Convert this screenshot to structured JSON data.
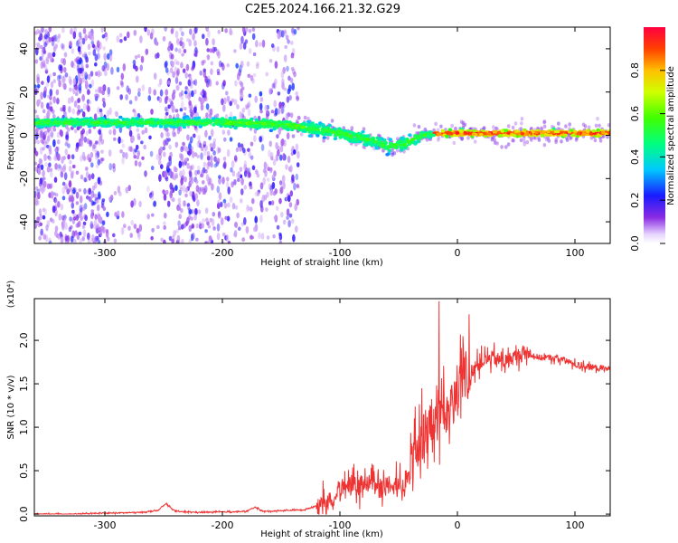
{
  "title": "C2E5.2024.166.21.32.G29",
  "chart_data": [
    {
      "type": "heatmap",
      "xlabel": "Height of straight line (km)",
      "ylabel": "Frequency (Hz)",
      "xlim": [
        -360,
        130
      ],
      "ylim": [
        -50,
        50
      ],
      "xticks": [
        -300,
        -200,
        -100,
        0,
        100
      ],
      "yticks": [
        -40,
        -20,
        0,
        20,
        40
      ],
      "colorbar": {
        "label": "Normalized spectral amplitude",
        "range": [
          0.0,
          1.0
        ],
        "ticks": [
          "0.0",
          "0.2",
          "0.4",
          "0.6",
          "0.8"
        ],
        "tick_values": [
          0.0,
          0.2,
          0.4,
          0.6,
          0.8
        ]
      },
      "ridge": {
        "x": [
          -350,
          -300,
          -250,
          -200,
          -150,
          -120,
          -100,
          -75,
          -60,
          -45,
          -30,
          -15,
          0,
          50,
          100,
          130
        ],
        "y": [
          6,
          6,
          6,
          6,
          5,
          3,
          1,
          -2,
          -5,
          -4,
          0,
          1,
          1,
          1,
          1,
          1
        ]
      }
    },
    {
      "type": "line",
      "xlabel": "Height of straight line (km)",
      "ylabel": "SNR (10 * v/v)",
      "multiplier": "(x10⁴)",
      "xlim": [
        -360,
        130
      ],
      "ylim": [
        -0.02,
        2.48
      ],
      "xticks": [
        -300,
        -200,
        -100,
        0,
        100
      ],
      "yticks": [
        0.0,
        0.5,
        1.0,
        1.5,
        2.0
      ],
      "ytick_labels": [
        "0.0",
        "0.5",
        "1.0",
        "1.5",
        "2.0"
      ],
      "series": [
        {
          "color": "#ee3333",
          "x": [
            -360,
            -330,
            -300,
            -270,
            -255,
            -248,
            -240,
            -220,
            -180,
            -172,
            -165,
            -150,
            -130,
            -115,
            -105,
            -100,
            -95,
            -85,
            -75,
            -65,
            -55,
            -45,
            -38,
            -32,
            -27,
            -22,
            -18,
            -15,
            -12,
            -8,
            -3,
            0,
            5,
            10,
            15,
            20,
            30,
            40,
            50,
            60,
            70,
            80,
            90,
            100,
            110,
            120,
            130
          ],
          "y": [
            0.0,
            0.0,
            0.01,
            0.02,
            0.04,
            0.12,
            0.03,
            0.02,
            0.03,
            0.08,
            0.03,
            0.04,
            0.05,
            0.12,
            0.2,
            0.3,
            0.35,
            0.3,
            0.38,
            0.33,
            0.35,
            0.35,
            0.45,
            0.7,
            0.95,
            1.05,
            1.15,
            1.3,
            1.2,
            1.35,
            1.25,
            1.4,
            1.5,
            1.6,
            1.7,
            1.75,
            1.8,
            1.75,
            1.82,
            1.85,
            1.8,
            1.8,
            1.78,
            1.72,
            1.7,
            1.68,
            1.67
          ]
        }
      ]
    }
  ]
}
